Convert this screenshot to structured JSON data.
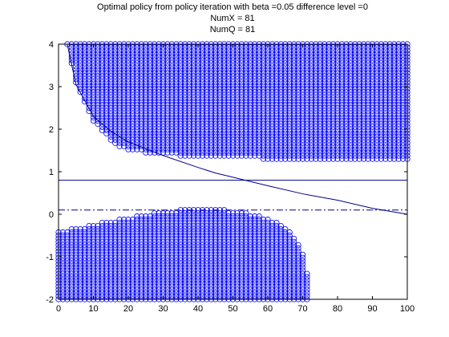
{
  "chart_data": {
    "type": "scatter",
    "title": "Optimal policy from policy iteration with beta =0.05 difference level =0",
    "subtitle_lines": [
      "NumX = 81",
      "NumQ = 81"
    ],
    "xlabel": "",
    "ylabel": "",
    "xlim": [
      0,
      100
    ],
    "ylim": [
      -2,
      4
    ],
    "x_ticks": [
      0,
      10,
      20,
      30,
      40,
      50,
      60,
      70,
      80,
      90,
      100
    ],
    "y_ticks": [
      -2,
      -1,
      0,
      1,
      2,
      3,
      4
    ],
    "grid": false,
    "marker_color": "#0000ff",
    "line_color": "#00008b",
    "grid_step": 0.075,
    "x_grid_step": 1.25,
    "upper_region": {
      "description_points": [
        {
          "x": 2.5,
          "y_low": 4.0
        },
        {
          "x": 3.75,
          "y_low": 3.5
        },
        {
          "x": 5,
          "y_low": 3.1
        },
        {
          "x": 7.5,
          "y_low": 2.6
        },
        {
          "x": 10,
          "y_low": 2.2
        },
        {
          "x": 12.5,
          "y_low": 1.95
        },
        {
          "x": 15,
          "y_low": 1.75
        },
        {
          "x": 17.5,
          "y_low": 1.6
        },
        {
          "x": 20,
          "y_low": 1.5
        },
        {
          "x": 25,
          "y_low": 1.45
        },
        {
          "x": 30,
          "y_low": 1.4
        },
        {
          "x": 40,
          "y_low": 1.35
        },
        {
          "x": 58.75,
          "y_low": 1.3
        },
        {
          "x": 60,
          "y_low": 1.27
        },
        {
          "x": 100,
          "y_low": 1.27
        }
      ],
      "y_high": 4.0
    },
    "lower_region": {
      "description_points": [
        {
          "x": 0,
          "y_high": -0.4
        },
        {
          "x": 3.75,
          "y_high": -0.35
        },
        {
          "x": 6.25,
          "y_high": -0.3
        },
        {
          "x": 10,
          "y_high": -0.25
        },
        {
          "x": 15,
          "y_high": -0.15
        },
        {
          "x": 20,
          "y_high": -0.1
        },
        {
          "x": 25,
          "y_high": 0.0
        },
        {
          "x": 30,
          "y_high": 0.06
        },
        {
          "x": 35,
          "y_high": 0.1
        },
        {
          "x": 40,
          "y_high": 0.1
        },
        {
          "x": 48,
          "y_high": 0.1
        },
        {
          "x": 52,
          "y_high": 0.05
        },
        {
          "x": 56,
          "y_high": 0.0
        },
        {
          "x": 60,
          "y_high": -0.1
        },
        {
          "x": 64,
          "y_high": -0.25
        },
        {
          "x": 67,
          "y_high": -0.45
        },
        {
          "x": 69,
          "y_high": -0.7
        },
        {
          "x": 70.5,
          "y_high": -1.0
        },
        {
          "x": 71.25,
          "y_high": -1.4
        },
        {
          "x": 71.25,
          "y_high": -2.0
        }
      ],
      "y_low": -2.0
    },
    "lines": [
      {
        "style": "solid",
        "y": 0.8
      },
      {
        "style": "dashdot",
        "y": 0.1
      },
      {
        "style": "solid-curve",
        "points": [
          [
            2.5,
            4.0
          ],
          [
            5,
            3.05
          ],
          [
            10,
            2.3
          ],
          [
            15,
            1.95
          ],
          [
            20,
            1.7
          ],
          [
            30,
            1.38
          ],
          [
            40,
            1.1
          ],
          [
            45,
            0.97
          ],
          [
            50,
            0.87
          ],
          [
            60,
            0.67
          ],
          [
            70,
            0.48
          ],
          [
            80,
            0.33
          ],
          [
            90,
            0.14
          ],
          [
            100,
            0.0
          ]
        ]
      }
    ]
  }
}
